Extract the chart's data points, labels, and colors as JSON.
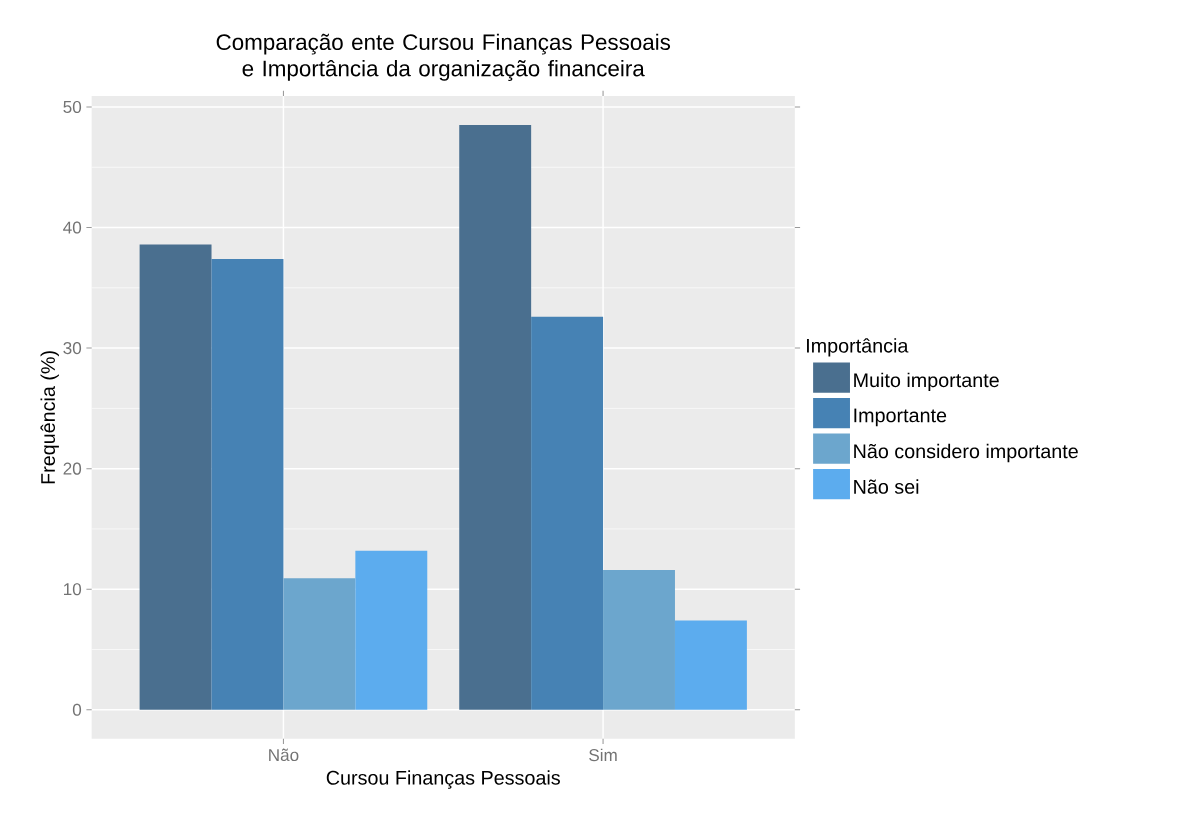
{
  "chart_data": {
    "type": "bar",
    "title": "Comparação ente Cursou Finanças Pessoais e Importância da organização financeira",
    "xlabel": "Cursou Finanças Pessoais",
    "ylabel": "Frequência (%)",
    "legend_title": "Importância",
    "categories": [
      "Não",
      "Sim"
    ],
    "series": [
      {
        "name": "Muito importante",
        "color": "#4a6f8f",
        "values": [
          38.6,
          48.5
        ]
      },
      {
        "name": "Importante",
        "color": "#4682b4",
        "values": [
          37.4,
          32.6
        ]
      },
      {
        "name": "Não considero importante",
        "color": "#6ca6cd",
        "values": [
          10.9,
          11.6
        ]
      },
      {
        "name": "Não sei",
        "color": "#5cacee",
        "values": [
          13.2,
          7.4
        ]
      }
    ],
    "ylim": [
      -2.4,
      50.9
    ],
    "yticks": [
      0,
      10,
      20,
      30,
      40,
      50
    ],
    "grid": true,
    "legend": "right"
  }
}
